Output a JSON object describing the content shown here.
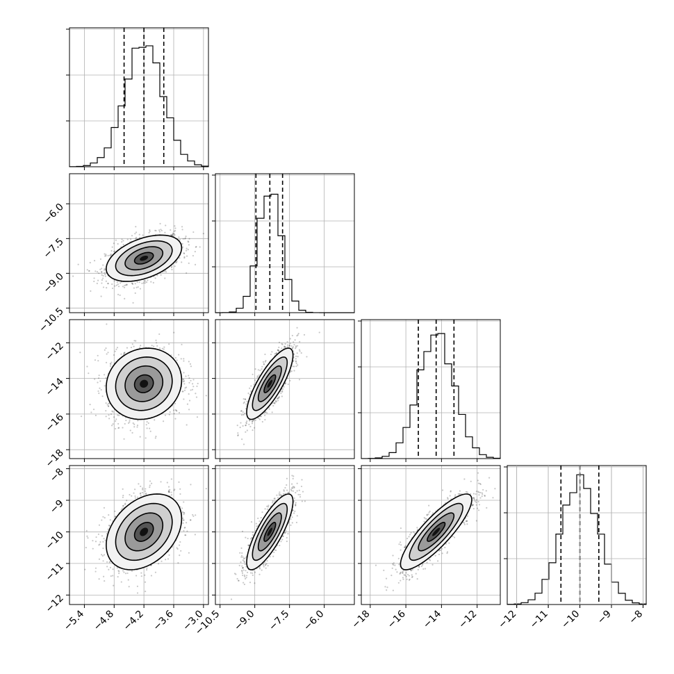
{
  "chart_data": {
    "type": "corner",
    "grid": true,
    "parameters": [
      {
        "index": 0,
        "mean": -4.2,
        "sd": 0.38,
        "range": [
          -5.7,
          -2.9
        ],
        "quantiles": [
          -4.6,
          -4.2,
          -3.8
        ],
        "ticks": [
          -5.4,
          -4.8,
          -4.2,
          -3.6,
          -3.0
        ],
        "tick_labels": [
          "−5.4",
          "−4.8",
          "−4.2",
          "−3.6",
          "−3.0"
        ]
      },
      {
        "index": 1,
        "mean": -8.35,
        "sd": 0.5,
        "range": [
          -10.7,
          -4.7
        ],
        "quantiles": [
          -8.95,
          -8.35,
          -7.8
        ],
        "ticks": [
          -10.5,
          -9.0,
          -7.5,
          -6.0
        ],
        "tick_labels": [
          "−10.5",
          "−9.0",
          "−7.5",
          "−6.0"
        ]
      },
      {
        "index": 2,
        "mean": -14.3,
        "sd": 1.0,
        "range": [
          -18.5,
          -10.7
        ],
        "quantiles": [
          -15.3,
          -14.3,
          -13.3
        ],
        "ticks": [
          -18,
          -16,
          -14,
          -12
        ],
        "tick_labels": [
          "−18",
          "−16",
          "−14",
          "−12"
        ]
      },
      {
        "index": 3,
        "mean": -10.0,
        "sd": 0.6,
        "range": [
          -12.3,
          -7.9
        ],
        "quantiles": [
          -10.6,
          -10.0,
          -9.4
        ],
        "ticks": [
          -12,
          -11,
          -10,
          -9,
          -8
        ],
        "tick_labels": [
          "−12",
          "−11",
          "−10",
          "−9",
          "−8"
        ]
      }
    ],
    "correlations": [
      {
        "x": 0,
        "y": 1,
        "rho": 0.45
      },
      {
        "x": 0,
        "y": 2,
        "rho": 0.1
      },
      {
        "x": 1,
        "y": 2,
        "rho": 0.8
      },
      {
        "x": 0,
        "y": 3,
        "rho": 0.35
      },
      {
        "x": 1,
        "y": 3,
        "rho": 0.8
      },
      {
        "x": 2,
        "y": 3,
        "rho": 0.85
      }
    ],
    "contour_levels_sigma": [
      0.5,
      1.0,
      1.5,
      2.0
    ],
    "histogram_bins": 20
  }
}
